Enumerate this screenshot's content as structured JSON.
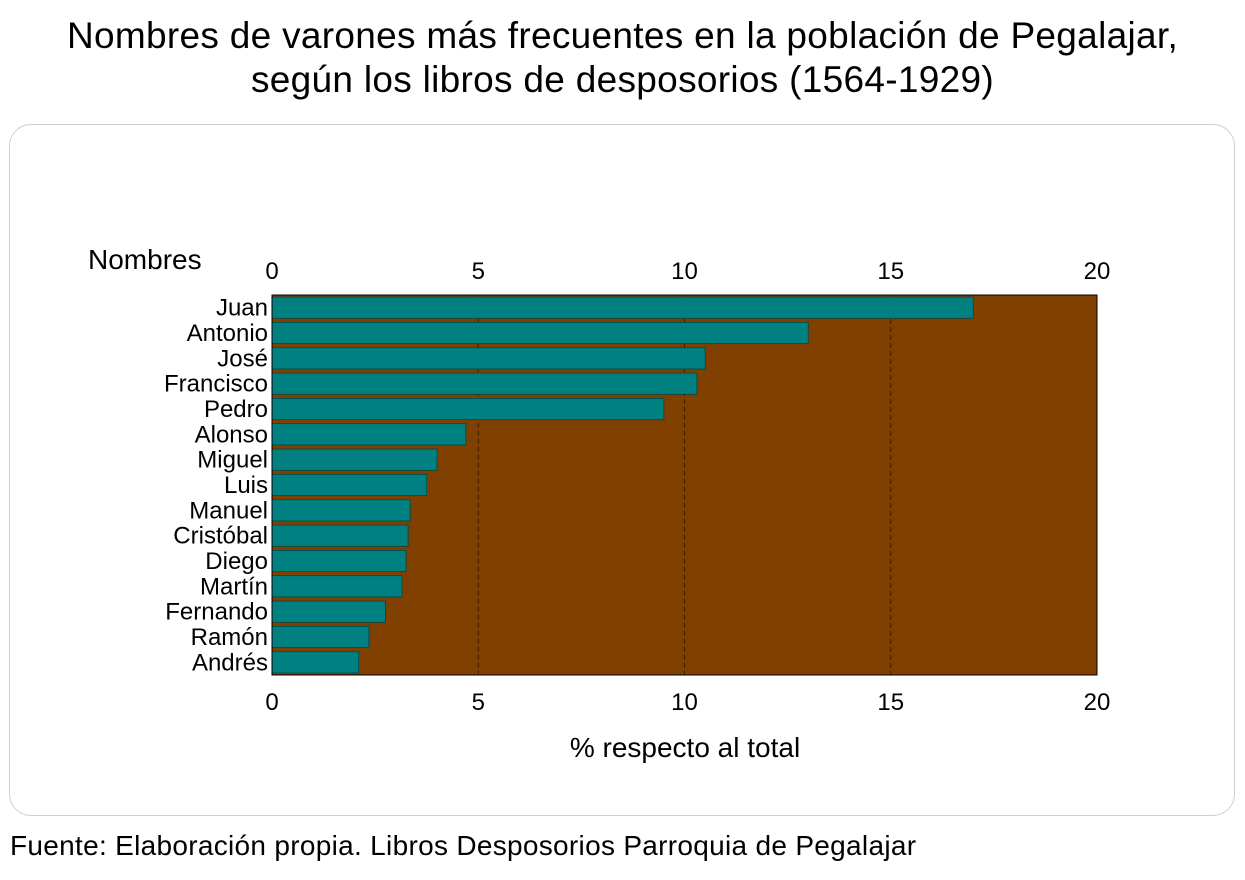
{
  "title_line1": "Nombres de varones más frecuentes en la población de Pegalajar,",
  "title_line2": "según los libros de desposorios (1564-1929)",
  "source": "Fuente: Elaboración propia. Libros Desposorios Parroquia de Pegalajar",
  "colors": {
    "plot_bg": "#7f4000",
    "bar": "#008080",
    "gridline": "#3a2000"
  },
  "chart_data": {
    "type": "bar",
    "orientation": "horizontal",
    "ylabel": "Nombres",
    "xlabel": "% respecto al total",
    "xlim": [
      0,
      20
    ],
    "xticks": [
      0,
      5,
      10,
      15,
      20
    ],
    "grid": true,
    "categories": [
      "Juan",
      "Antonio",
      "José",
      "Francisco",
      "Pedro",
      "Alonso",
      "Miguel",
      "Luis",
      "Manuel",
      "Cristóbal",
      "Diego",
      "Martín",
      "Fernando",
      "Ramón",
      "Andrés"
    ],
    "values": [
      17.0,
      13.0,
      10.5,
      10.3,
      9.5,
      4.7,
      4.0,
      3.75,
      3.35,
      3.3,
      3.25,
      3.15,
      2.75,
      2.35,
      2.1
    ]
  }
}
